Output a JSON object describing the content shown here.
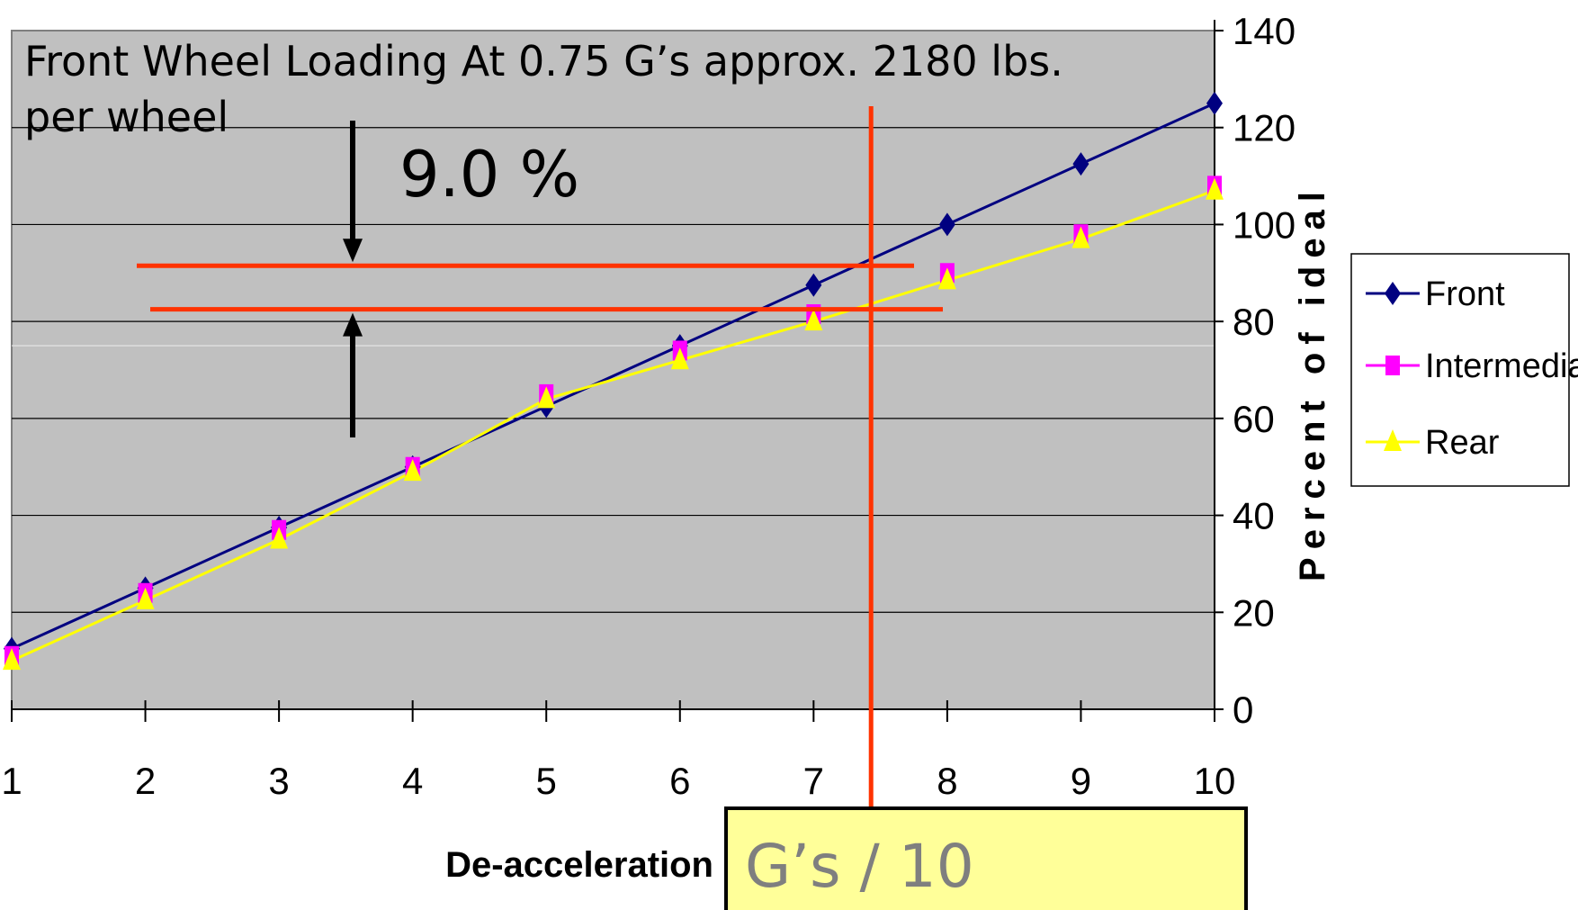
{
  "chart_data": {
    "type": "line",
    "categories": [
      "1",
      "2",
      "3",
      "4",
      "5",
      "6",
      "7",
      "8",
      "9",
      "10"
    ],
    "series": [
      {
        "name": "Front",
        "values": [
          12.5,
          25,
          37.5,
          50,
          62.5,
          75,
          87.5,
          100,
          112.5,
          125
        ],
        "color": "#000080",
        "marker": "diamond"
      },
      {
        "name": "Intermediate",
        "values": [
          11,
          24,
          37,
          50,
          65,
          74,
          81.5,
          90,
          98,
          108
        ],
        "color": "#ff00ff",
        "marker": "square"
      },
      {
        "name": "Rear",
        "values": [
          10,
          22.5,
          35,
          49,
          64,
          72,
          80,
          88.5,
          97,
          107
        ],
        "color": "#ffff00",
        "marker": "triangle"
      }
    ],
    "ylim": [
      0,
      140
    ],
    "yticks": [
      "0",
      "20",
      "40",
      "60",
      "80",
      "100",
      "120",
      "140"
    ],
    "ylabel": "Percent of ideal",
    "xlabel": "De-acceleration",
    "xlabel_box": "G’s / 10",
    "y_axis_side": "right",
    "legend_placement": "right",
    "grid": true,
    "plot_background": "#c0c0c0",
    "title": "Front Wheel Loading At  0.75 G’s  approx. 2180 lbs.",
    "title_line2": "per wheel",
    "annotation_percent": "9.0 %",
    "annotation_lines": {
      "vertical_x": 7.43,
      "upper_y": 91.5,
      "lower_y": 82.5,
      "color": "#ff3300"
    },
    "box_color": "#ffff99"
  }
}
